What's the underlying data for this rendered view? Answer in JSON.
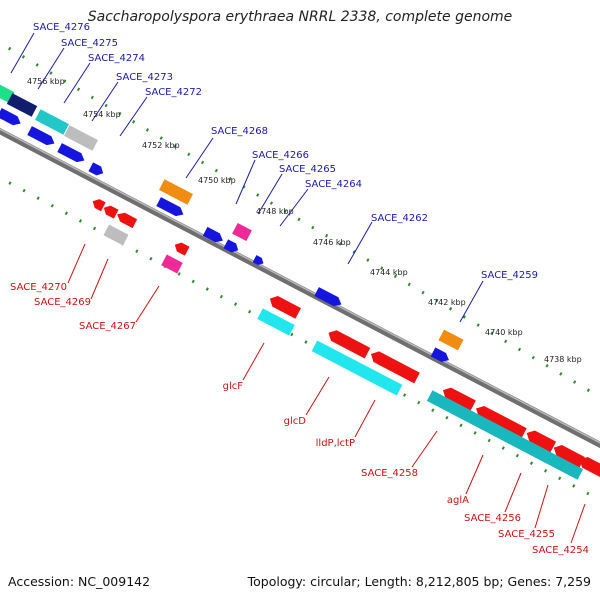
{
  "title": "Saccharopolyspora erythraea NRRL 2338, complete genome",
  "footer": {
    "accession": "Accession: NC_009142",
    "summary": "Topology: circular; Length: 8,212,805 bp; Genes: 7,259"
  },
  "colors": {
    "upper_label": "#1a1aa8",
    "lower_label": "#cc1111",
    "backbone": "#777777",
    "tick": "#2e8b2e"
  },
  "kbp_labels": [
    "4756 kbp",
    "4754 kbp",
    "4752 kbp",
    "4750 kbp",
    "4748 kbp",
    "4746 kbp",
    "4744 kbp",
    "4742 kbp",
    "4740 kbp",
    "4738 kbp"
  ],
  "upper_genes": [
    "SACE_4276",
    "SACE_4275",
    "SACE_4274",
    "SACE_4273",
    "SACE_4272",
    "SACE_4268",
    "SACE_4266",
    "SACE_4265",
    "SACE_4264",
    "SACE_4262",
    "SACE_4259"
  ],
  "lower_genes": [
    "SACE_4270",
    "SACE_4269",
    "SACE_4267",
    "glcF",
    "glcD",
    "lldP,lctP",
    "SACE_4258",
    "aglA",
    "SACE_4256",
    "SACE_4255",
    "SACE_4254"
  ]
}
